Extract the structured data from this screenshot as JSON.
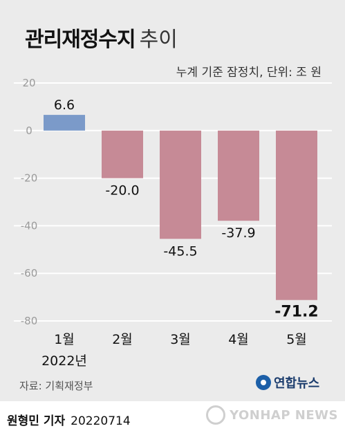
{
  "title_bold": "관리재정수지",
  "title_light": "추이",
  "subtitle": "누계 기준 잠정치, 단위: 조 원",
  "source": "자료: 기획재정부",
  "logo_text": "연합뉴스",
  "byline_name": "원형민 기자",
  "byline_date": "20220714",
  "watermark_text": "YONHAP NEWS",
  "chart_data": {
    "type": "bar",
    "categories": [
      "1월",
      "2월",
      "3월",
      "4월",
      "5월"
    ],
    "year_label": "2022년",
    "values": [
      6.6,
      -20.0,
      -45.5,
      -37.9,
      -71.2
    ],
    "value_labels": [
      "6.6",
      "-20.0",
      "-45.5",
      "-37.9",
      "-71.2"
    ],
    "ylim": [
      -80,
      20
    ],
    "yticks": [
      20,
      0,
      -20,
      -40,
      -60,
      -80
    ],
    "grid": true,
    "colors": {
      "positive": "#7b9ac9",
      "negative": "#c68a96",
      "grid": "#ffffff",
      "axis_text": "#9a9a9a"
    },
    "highlight_index": 4
  }
}
